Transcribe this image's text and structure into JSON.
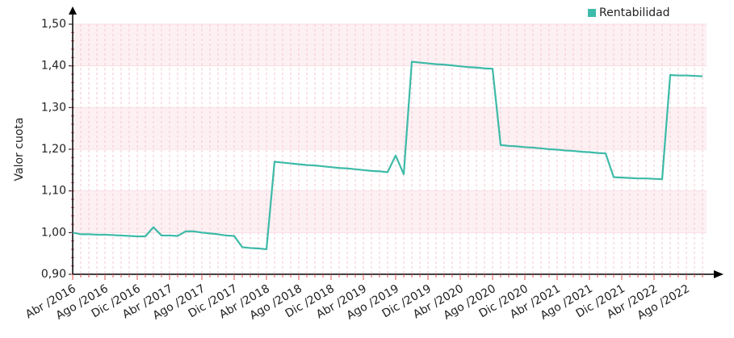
{
  "chart_data": {
    "type": "line",
    "y_label": "Valor cuota",
    "categories": [
      "Abr /2016",
      null,
      null,
      null,
      "Ago /2016",
      null,
      null,
      null,
      "Dic /2016",
      null,
      null,
      null,
      "Abr /2017",
      null,
      null,
      null,
      "Ago /2017",
      null,
      null,
      null,
      "Dic /2017",
      null,
      null,
      null,
      "Abr /2018",
      null,
      null,
      null,
      "Ago /2018",
      null,
      null,
      null,
      "Dic /2018",
      null,
      null,
      null,
      "Abr /2019",
      null,
      null,
      null,
      "Ago /2019",
      null,
      null,
      null,
      "Dic /2019",
      null,
      null,
      null,
      "Abr /2020",
      null,
      null,
      null,
      "Ago /2020",
      null,
      null,
      null,
      "Dic /2020",
      null,
      null,
      null,
      "Abr /2021",
      null,
      null,
      null,
      "Ago /2021",
      null,
      null,
      null,
      "Dic /2021",
      null,
      null,
      null,
      "Abr /2022",
      null,
      null,
      null,
      "Ago /2022",
      null,
      null
    ],
    "series": [
      {
        "name": "Rentabilidad",
        "color": "#3dbaa8",
        "values": [
          1.0,
          0.996,
          0.996,
          0.995,
          0.995,
          0.994,
          0.993,
          0.992,
          0.991,
          0.991,
          1.013,
          0.993,
          0.993,
          0.992,
          1.003,
          1.003,
          1.0,
          0.998,
          0.996,
          0.993,
          0.992,
          0.965,
          0.963,
          0.962,
          0.96,
          1.17,
          1.168,
          1.166,
          1.164,
          1.162,
          1.161,
          1.159,
          1.157,
          1.155,
          1.154,
          1.152,
          1.15,
          1.148,
          1.147,
          1.145,
          1.185,
          1.14,
          1.41,
          1.408,
          1.406,
          1.404,
          1.403,
          1.401,
          1.399,
          1.397,
          1.396,
          1.394,
          1.393,
          1.21,
          1.208,
          1.207,
          1.205,
          1.204,
          1.202,
          1.2,
          1.199,
          1.197,
          1.196,
          1.194,
          1.193,
          1.191,
          1.19,
          1.133,
          1.132,
          1.131,
          1.13,
          1.13,
          1.129,
          1.128,
          1.378,
          1.377,
          1.377,
          1.376,
          1.375
        ]
      }
    ],
    "ylim": [
      0.9,
      1.5
    ],
    "yticks": [
      {
        "value": 0.9,
        "label": "0,90"
      },
      {
        "value": 1.0,
        "label": "1,00"
      },
      {
        "value": 1.1,
        "label": "1,10"
      },
      {
        "value": 1.2,
        "label": "1,20"
      },
      {
        "value": 1.3,
        "label": "1,30"
      },
      {
        "value": 1.4,
        "label": "1,40"
      },
      {
        "value": 1.5,
        "label": "1,50"
      }
    ],
    "grid": true,
    "legend": "top-right"
  }
}
